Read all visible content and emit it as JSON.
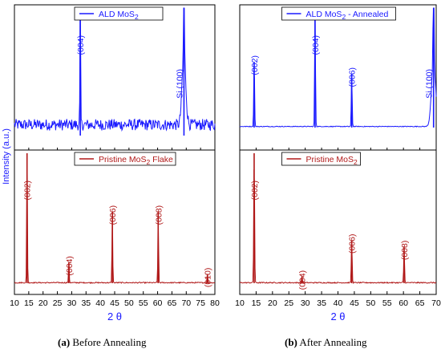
{
  "chart_data": [
    {
      "type": "line",
      "panel": "(a) Before Annealing",
      "xlabel": "2 θ",
      "ylabel": "Intensity (a.u.)",
      "xlim": [
        10,
        80
      ],
      "xticks": [
        10,
        15,
        20,
        25,
        30,
        35,
        40,
        45,
        50,
        55,
        60,
        65,
        70,
        75,
        80
      ],
      "grid": false,
      "subplots": [
        {
          "position": "top",
          "legend": "ALD MoS2",
          "legend_position": "top-center",
          "color": "#1a1aff",
          "ylim": [
            0,
            100
          ],
          "background": "noise",
          "peaks": [
            {
              "label": "(004)",
              "x": 33.0,
              "y": 100
            },
            {
              "label": "Si (100)",
              "x": 69.2,
              "y": 100
            }
          ]
        },
        {
          "position": "bottom",
          "legend": "Pristine MoS2 Flake",
          "legend_position": "top-center",
          "color": "#b01818",
          "ylim": [
            0,
            100
          ],
          "peaks": [
            {
              "label": "(002)",
              "x": 14.4,
              "y": 100
            },
            {
              "label": "(004)",
              "x": 29.0,
              "y": 16
            },
            {
              "label": "(006)",
              "x": 44.2,
              "y": 55
            },
            {
              "label": "(008)",
              "x": 60.2,
              "y": 55
            },
            {
              "label": "(010)",
              "x": 77.4,
              "y": 7
            }
          ]
        }
      ]
    },
    {
      "type": "line",
      "panel": "(b) After Annealing",
      "xlabel": "2 θ",
      "xlim": [
        10,
        70
      ],
      "xticks": [
        10,
        15,
        20,
        25,
        30,
        35,
        40,
        45,
        50,
        55,
        60,
        65,
        70
      ],
      "grid": false,
      "subplots": [
        {
          "position": "top",
          "legend": "ALD MoS2 - Annealed",
          "legend_position": "top-center",
          "color": "#1a1aff",
          "ylim": [
            0,
            100
          ],
          "background": "flat",
          "peaks": [
            {
              "label": "(002)",
              "x": 14.4,
              "y": 55
            },
            {
              "label": "(004)",
              "x": 33.0,
              "y": 100
            },
            {
              "label": "(006)",
              "x": 44.2,
              "y": 45
            },
            {
              "label": "Si (100)",
              "x": 69.2,
              "y": 100
            }
          ]
        },
        {
          "position": "bottom",
          "legend": "Pristine MoS2",
          "legend_position": "top-center",
          "color": "#b01818",
          "ylim": [
            0,
            100
          ],
          "peaks": [
            {
              "label": "(002)",
              "x": 14.4,
              "y": 100
            },
            {
              "label": "(004)",
              "x": 29.0,
              "y": 5
            },
            {
              "label": "(006)",
              "x": 44.2,
              "y": 33
            },
            {
              "label": "(008)",
              "x": 60.2,
              "y": 28
            }
          ]
        }
      ]
    }
  ],
  "captions": {
    "a_tag": "(a)",
    "a_text": " Before Annealing",
    "b_tag": "(b)",
    "b_text": " After Annealing"
  }
}
